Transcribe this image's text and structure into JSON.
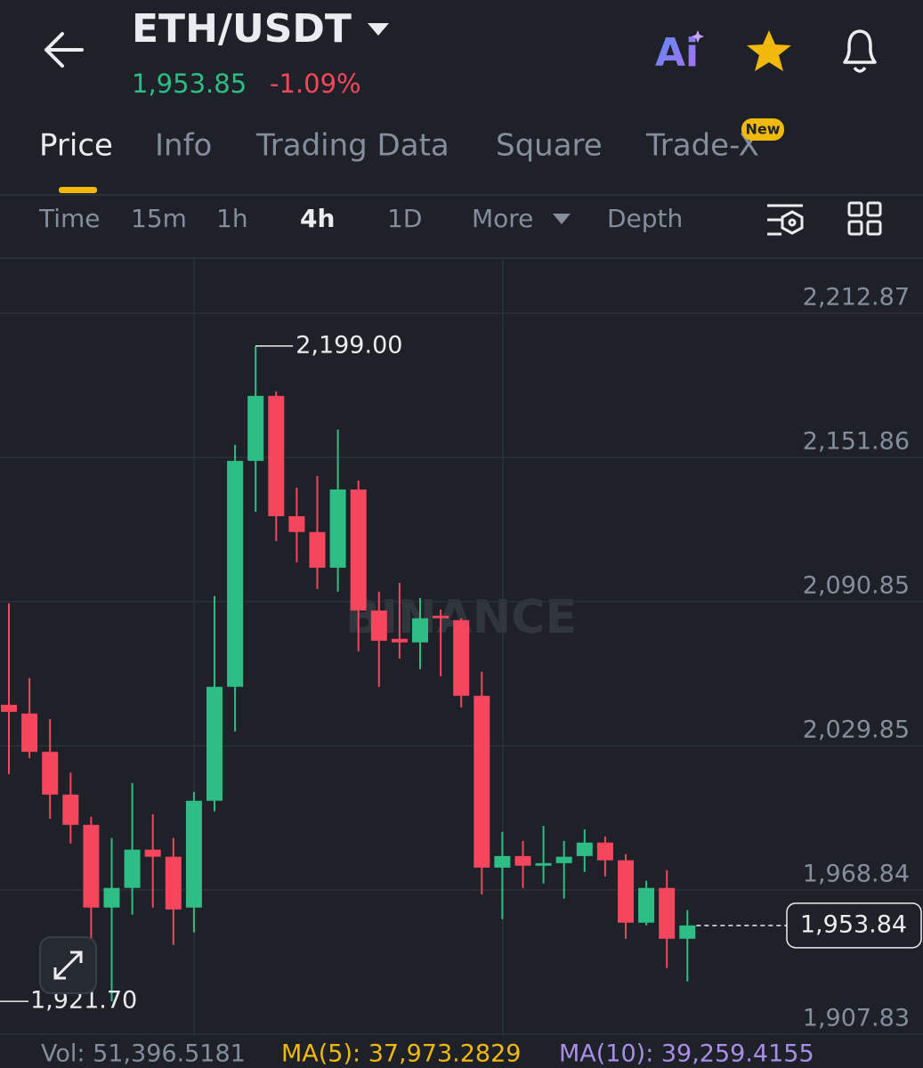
{
  "header": {
    "title": "ETH/USDT",
    "price": "1,953.85",
    "change": "-1.09%",
    "ai": "Ai"
  },
  "tabs": [
    "Price",
    "Info",
    "Trading Data",
    "Square",
    "Trade-X"
  ],
  "tab_badge": "New",
  "intervals": [
    "Time",
    "15m",
    "1h",
    "4h",
    "1D",
    "More",
    "Depth"
  ],
  "watermark": "BINANCE",
  "footer": {
    "volume": "Vol: 51,396.5181",
    "ma5": "MA(5): 37,973.2829",
    "ma10": "MA(10): 39,259.4155"
  },
  "chart_data": {
    "type": "candlestick",
    "up_color": "#2ebd85",
    "down_color": "#f6465d",
    "ylim": [
      1906.7,
      2236.2
    ],
    "yticks": [
      {
        "value": 2212.87,
        "label": "2,212.87"
      },
      {
        "value": 2151.86,
        "label": "2,151.86"
      },
      {
        "value": 2090.85,
        "label": "2,090.85"
      },
      {
        "value": 2029.85,
        "label": "2,029.85"
      },
      {
        "value": 1968.84,
        "label": "1,968.84"
      },
      {
        "value": 1907.83,
        "label": "1,907.83"
      }
    ],
    "grid": true,
    "candles": [
      {
        "open": 2047.2,
        "high": 2090.1,
        "low": 2017.9,
        "close": 2044.2
      },
      {
        "open": 2043.5,
        "high": 2058.5,
        "low": 2024.6,
        "close": 2027.3
      },
      {
        "open": 2027.3,
        "high": 2041.2,
        "low": 1999.0,
        "close": 2009.2
      },
      {
        "open": 2009.2,
        "high": 2018.6,
        "low": 1988.5,
        "close": 1996.4
      },
      {
        "open": 1996.4,
        "high": 1999.8,
        "low": 1948.2,
        "close": 1961.4
      },
      {
        "open": 1961.4,
        "high": 1990.8,
        "low": 1921.7,
        "close": 1969.7
      },
      {
        "open": 1969.7,
        "high": 2014.1,
        "low": 1958.4,
        "close": 1985.9
      },
      {
        "open": 1985.9,
        "high": 2000.9,
        "low": 1961.4,
        "close": 1982.9
      },
      {
        "open": 1982.9,
        "high": 1990.8,
        "low": 1945.6,
        "close": 1960.6
      },
      {
        "open": 1961.4,
        "high": 2010.3,
        "low": 1950.9,
        "close": 2006.6
      },
      {
        "open": 2006.6,
        "high": 2093.2,
        "low": 2002.1,
        "close": 2054.8
      },
      {
        "open": 2054.8,
        "high": 2157.2,
        "low": 2035.9,
        "close": 2150.4
      },
      {
        "open": 2150.4,
        "high": 2199.0,
        "low": 2128.9,
        "close": 2177.9
      },
      {
        "open": 2177.9,
        "high": 2179.8,
        "low": 2116.5,
        "close": 2127.0
      },
      {
        "open": 2127.0,
        "high": 2139.1,
        "low": 2107.5,
        "close": 2120.3
      },
      {
        "open": 2120.3,
        "high": 2144.0,
        "low": 2096.2,
        "close": 2105.2
      },
      {
        "open": 2105.2,
        "high": 2163.6,
        "low": 2095.1,
        "close": 2138.3
      },
      {
        "open": 2138.3,
        "high": 2142.1,
        "low": 2069.8,
        "close": 2087.1
      },
      {
        "open": 2087.1,
        "high": 2095.1,
        "low": 2054.8,
        "close": 2074.3
      },
      {
        "open": 2075.1,
        "high": 2098.8,
        "low": 2066.8,
        "close": 2073.6
      },
      {
        "open": 2073.6,
        "high": 2092.4,
        "low": 2062.3,
        "close": 2083.8
      },
      {
        "open": 2084.9,
        "high": 2087.5,
        "low": 2059.3,
        "close": 2083.8
      },
      {
        "open": 2083.0,
        "high": 2083.8,
        "low": 2046.1,
        "close": 2051.0
      },
      {
        "open": 2051.0,
        "high": 2061.2,
        "low": 1967.0,
        "close": 1978.3
      },
      {
        "open": 1978.3,
        "high": 1993.4,
        "low": 1956.5,
        "close": 1983.2
      },
      {
        "open": 1983.2,
        "high": 1989.6,
        "low": 1969.7,
        "close": 1979.1
      },
      {
        "open": 1979.1,
        "high": 1996.0,
        "low": 1971.6,
        "close": 1980.2
      },
      {
        "open": 1980.2,
        "high": 1989.6,
        "low": 1965.2,
        "close": 1982.9
      },
      {
        "open": 1983.2,
        "high": 1994.5,
        "low": 1976.5,
        "close": 1988.9
      },
      {
        "open": 1988.9,
        "high": 1991.5,
        "low": 1974.6,
        "close": 1981.4
      },
      {
        "open": 1981.4,
        "high": 1984.0,
        "low": 1948.2,
        "close": 1955.0
      },
      {
        "open": 1955.0,
        "high": 1972.7,
        "low": 1953.9,
        "close": 1969.7
      },
      {
        "open": 1969.7,
        "high": 1977.2,
        "low": 1935.8,
        "close": 1948.2
      },
      {
        "open": 1948.2,
        "high": 1960.3,
        "low": 1930.1,
        "close": 1953.84
      }
    ],
    "high_marker": {
      "value": 2199.0,
      "label": "2,199.00"
    },
    "low_marker": {
      "value": 1921.7,
      "label": "1,921.70"
    },
    "last_price": {
      "value": 1953.84,
      "label": "1,953.84"
    }
  }
}
